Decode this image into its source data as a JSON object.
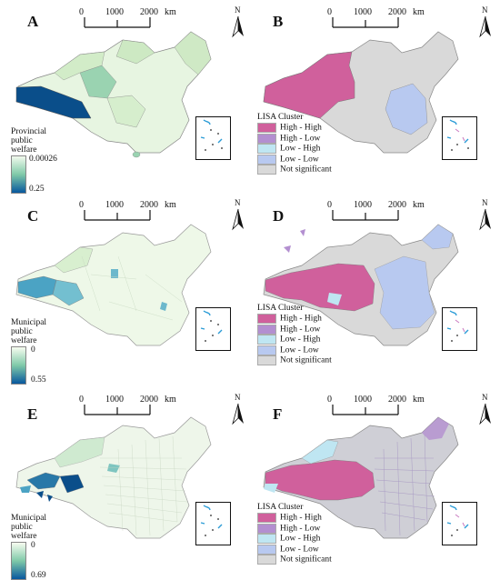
{
  "panels": [
    {
      "letter": "A",
      "type": "continuous",
      "legend_title": "Provincial public welfare",
      "legend_min": "0.00026",
      "legend_max": "0.25",
      "style": "prov"
    },
    {
      "letter": "B",
      "type": "lisa",
      "legend_title": "LISA Cluster",
      "style": "lisaB"
    },
    {
      "letter": "C",
      "type": "continuous",
      "legend_title": "Municipal public welfare",
      "legend_min": "0",
      "legend_max": "0.55",
      "style": "munC"
    },
    {
      "letter": "D",
      "type": "lisa",
      "legend_title": "LISA Cluster",
      "style": "lisaD"
    },
    {
      "letter": "E",
      "type": "continuous",
      "legend_title": "Municipal public welfare",
      "legend_min": "0",
      "legend_max": "0.69",
      "style": "munE"
    },
    {
      "letter": "F",
      "type": "lisa",
      "legend_title": "LISA Cluster",
      "style": "lisaF"
    }
  ],
  "scale": {
    "labels": [
      "0",
      "1000",
      "2000"
    ],
    "unit": "km"
  },
  "north_label": "N",
  "lisa_categories": [
    {
      "label": "High - High",
      "color": "#d0609c"
    },
    {
      "label": "High - Low",
      "color": "#b38fd0"
    },
    {
      "label": "Low - High",
      "color": "#bfe6f2"
    },
    {
      "label": "Low - Low",
      "color": "#b8c9f0"
    },
    {
      "label": "Not significant",
      "color": "#d9d9d9"
    }
  ],
  "colors": {
    "seq_light": "#f2faed",
    "seq_mid": "#7fc9a8",
    "seq_dark": "#08589e",
    "inset_line": "#2a9bd6",
    "inset_dots": "#c97ac0"
  }
}
